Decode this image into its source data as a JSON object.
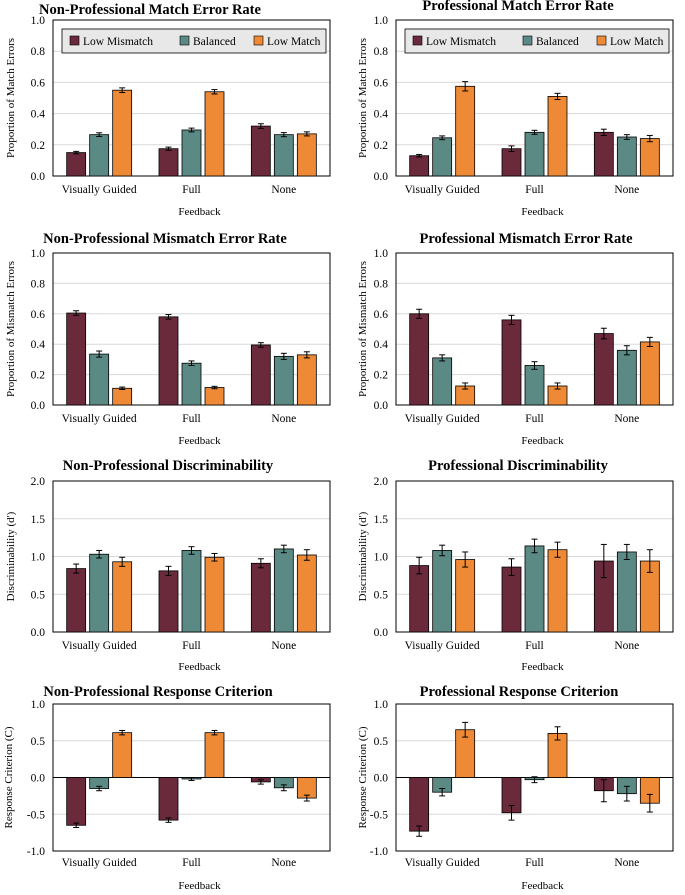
{
  "figure": {
    "series_names": [
      "Low Mismatch",
      "Balanced",
      "Low Match"
    ],
    "colors": [
      "#6b2a3c",
      "#5b8a85",
      "#ee8a35"
    ],
    "xlabel": "Feedback",
    "categories": [
      "Visually Guided",
      "Full",
      "None"
    ]
  },
  "chart_data": [
    {
      "type": "bar",
      "title": "Non-Professional Match Error Rate",
      "ylabel": "Proportion of Match Errors",
      "xlabel": "Feedback",
      "categories": [
        "Visually Guided",
        "Full",
        "None"
      ],
      "ylim": [
        0,
        1.0
      ],
      "yticks": [
        "0.0",
        "0.2",
        "0.4",
        "0.6",
        "0.8",
        "1.0"
      ],
      "legend": true,
      "series": [
        {
          "name": "Low Mismatch",
          "values": [
            0.15,
            0.175,
            0.32
          ],
          "errors": [
            0.008,
            0.01,
            0.015
          ]
        },
        {
          "name": "Balanced",
          "values": [
            0.265,
            0.295,
            0.265
          ],
          "errors": [
            0.012,
            0.012,
            0.013
          ]
        },
        {
          "name": "Low Match",
          "values": [
            0.55,
            0.54,
            0.27
          ],
          "errors": [
            0.015,
            0.014,
            0.013
          ]
        }
      ]
    },
    {
      "type": "bar",
      "title": "Professional Match Error Rate",
      "ylabel": "Proportion of Match Errors",
      "xlabel": "Feedback",
      "categories": [
        "Visually Guided",
        "Full",
        "None"
      ],
      "ylim": [
        0,
        1.0
      ],
      "yticks": [
        "0.0",
        "0.2",
        "0.4",
        "0.6",
        "0.8",
        "1.0"
      ],
      "legend": true,
      "series": [
        {
          "name": "Low Mismatch",
          "values": [
            0.13,
            0.175,
            0.28
          ],
          "errors": [
            0.008,
            0.018,
            0.02
          ]
        },
        {
          "name": "Balanced",
          "values": [
            0.245,
            0.28,
            0.25
          ],
          "errors": [
            0.012,
            0.013,
            0.015
          ]
        },
        {
          "name": "Low Match",
          "values": [
            0.575,
            0.51,
            0.24
          ],
          "errors": [
            0.03,
            0.02,
            0.02
          ]
        }
      ]
    },
    {
      "type": "bar",
      "title": "Non-Professional Mismatch Error Rate",
      "ylabel": "Proportion of Mismatch Errors",
      "xlabel": "Feedback",
      "categories": [
        "Visually Guided",
        "Full",
        "None"
      ],
      "ylim": [
        0,
        1.0
      ],
      "yticks": [
        "0.0",
        "0.2",
        "0.4",
        "0.6",
        "0.8",
        "1.0"
      ],
      "legend": false,
      "series": [
        {
          "name": "Low Mismatch",
          "values": [
            0.605,
            0.58,
            0.395
          ],
          "errors": [
            0.015,
            0.015,
            0.015
          ]
        },
        {
          "name": "Balanced",
          "values": [
            0.335,
            0.275,
            0.32
          ],
          "errors": [
            0.02,
            0.015,
            0.02
          ]
        },
        {
          "name": "Low Match",
          "values": [
            0.11,
            0.115,
            0.33
          ],
          "errors": [
            0.008,
            0.008,
            0.02
          ]
        }
      ]
    },
    {
      "type": "bar",
      "title": "Professional Mismatch Error Rate",
      "ylabel": "Proportion of Mismatch Errors",
      "xlabel": "Feedback",
      "categories": [
        "Visually Guided",
        "Full",
        "None"
      ],
      "ylim": [
        0,
        1.0
      ],
      "yticks": [
        "0.0",
        "0.2",
        "0.4",
        "0.6",
        "0.8",
        "1.0"
      ],
      "legend": false,
      "series": [
        {
          "name": "Low Mismatch",
          "values": [
            0.6,
            0.56,
            0.47
          ],
          "errors": [
            0.03,
            0.03,
            0.035
          ]
        },
        {
          "name": "Balanced",
          "values": [
            0.31,
            0.26,
            0.36
          ],
          "errors": [
            0.02,
            0.025,
            0.03
          ]
        },
        {
          "name": "Low Match",
          "values": [
            0.125,
            0.125,
            0.415
          ],
          "errors": [
            0.02,
            0.02,
            0.03
          ]
        }
      ]
    },
    {
      "type": "bar",
      "title": "Non-Professional Discriminability",
      "ylabel": "Discriminability (d')",
      "xlabel": "Feedback",
      "categories": [
        "Visually Guided",
        "Full",
        "None"
      ],
      "ylim": [
        0,
        2.0
      ],
      "yticks": [
        "0.0",
        "0.5",
        "1.0",
        "1.5",
        "2.0"
      ],
      "legend": false,
      "series": [
        {
          "name": "Low Mismatch",
          "values": [
            0.84,
            0.81,
            0.91
          ],
          "errors": [
            0.06,
            0.06,
            0.06
          ]
        },
        {
          "name": "Balanced",
          "values": [
            1.03,
            1.08,
            1.1
          ],
          "errors": [
            0.05,
            0.05,
            0.05
          ]
        },
        {
          "name": "Low Match",
          "values": [
            0.93,
            0.99,
            1.02
          ],
          "errors": [
            0.06,
            0.05,
            0.07
          ]
        }
      ]
    },
    {
      "type": "bar",
      "title": "Professional Discriminability",
      "ylabel": "Discriminability (d')",
      "xlabel": "Feedback",
      "categories": [
        "Visually Guided",
        "Full",
        "None"
      ],
      "ylim": [
        0,
        2.0
      ],
      "yticks": [
        "0.0",
        "0.5",
        "1.0",
        "1.5",
        "2.0"
      ],
      "legend": false,
      "series": [
        {
          "name": "Low Mismatch",
          "values": [
            0.88,
            0.86,
            0.94
          ],
          "errors": [
            0.11,
            0.11,
            0.22
          ]
        },
        {
          "name": "Balanced",
          "values": [
            1.08,
            1.14,
            1.06
          ],
          "errors": [
            0.07,
            0.09,
            0.1
          ]
        },
        {
          "name": "Low Match",
          "values": [
            0.96,
            1.09,
            0.94
          ],
          "errors": [
            0.1,
            0.1,
            0.15
          ]
        }
      ]
    },
    {
      "type": "bar",
      "title": "Non-Professional Response Criterion",
      "ylabel": "Response Criterion (C)",
      "xlabel": "Feedback",
      "categories": [
        "Visually Guided",
        "Full",
        "None"
      ],
      "ylim": [
        -1.0,
        1.0
      ],
      "yticks": [
        "-1.0",
        "-0.5",
        "0.0",
        "0.5",
        "1.0"
      ],
      "legend": false,
      "series": [
        {
          "name": "Low Mismatch",
          "values": [
            -0.65,
            -0.58,
            -0.06
          ],
          "errors": [
            0.03,
            0.03,
            0.03
          ]
        },
        {
          "name": "Balanced",
          "values": [
            -0.15,
            -0.02,
            -0.14
          ],
          "errors": [
            0.03,
            0.02,
            0.04
          ]
        },
        {
          "name": "Low Match",
          "values": [
            0.61,
            0.61,
            -0.28
          ],
          "errors": [
            0.03,
            0.03,
            0.04
          ]
        }
      ]
    },
    {
      "type": "bar",
      "title": "Professional Response Criterion",
      "ylabel": "Response Criterion (C)",
      "xlabel": "Feedback",
      "categories": [
        "Visually Guided",
        "Full",
        "None"
      ],
      "ylim": [
        -1.0,
        1.0
      ],
      "yticks": [
        "-1.0",
        "-0.5",
        "0.0",
        "0.5",
        "1.0"
      ],
      "legend": false,
      "series": [
        {
          "name": "Low Mismatch",
          "values": [
            -0.73,
            -0.48,
            -0.18
          ],
          "errors": [
            0.07,
            0.1,
            0.15
          ]
        },
        {
          "name": "Balanced",
          "values": [
            -0.2,
            -0.03,
            -0.22
          ],
          "errors": [
            0.05,
            0.04,
            0.1
          ]
        },
        {
          "name": "Low Match",
          "values": [
            0.65,
            0.6,
            -0.35
          ],
          "errors": [
            0.1,
            0.09,
            0.12
          ]
        }
      ]
    }
  ]
}
